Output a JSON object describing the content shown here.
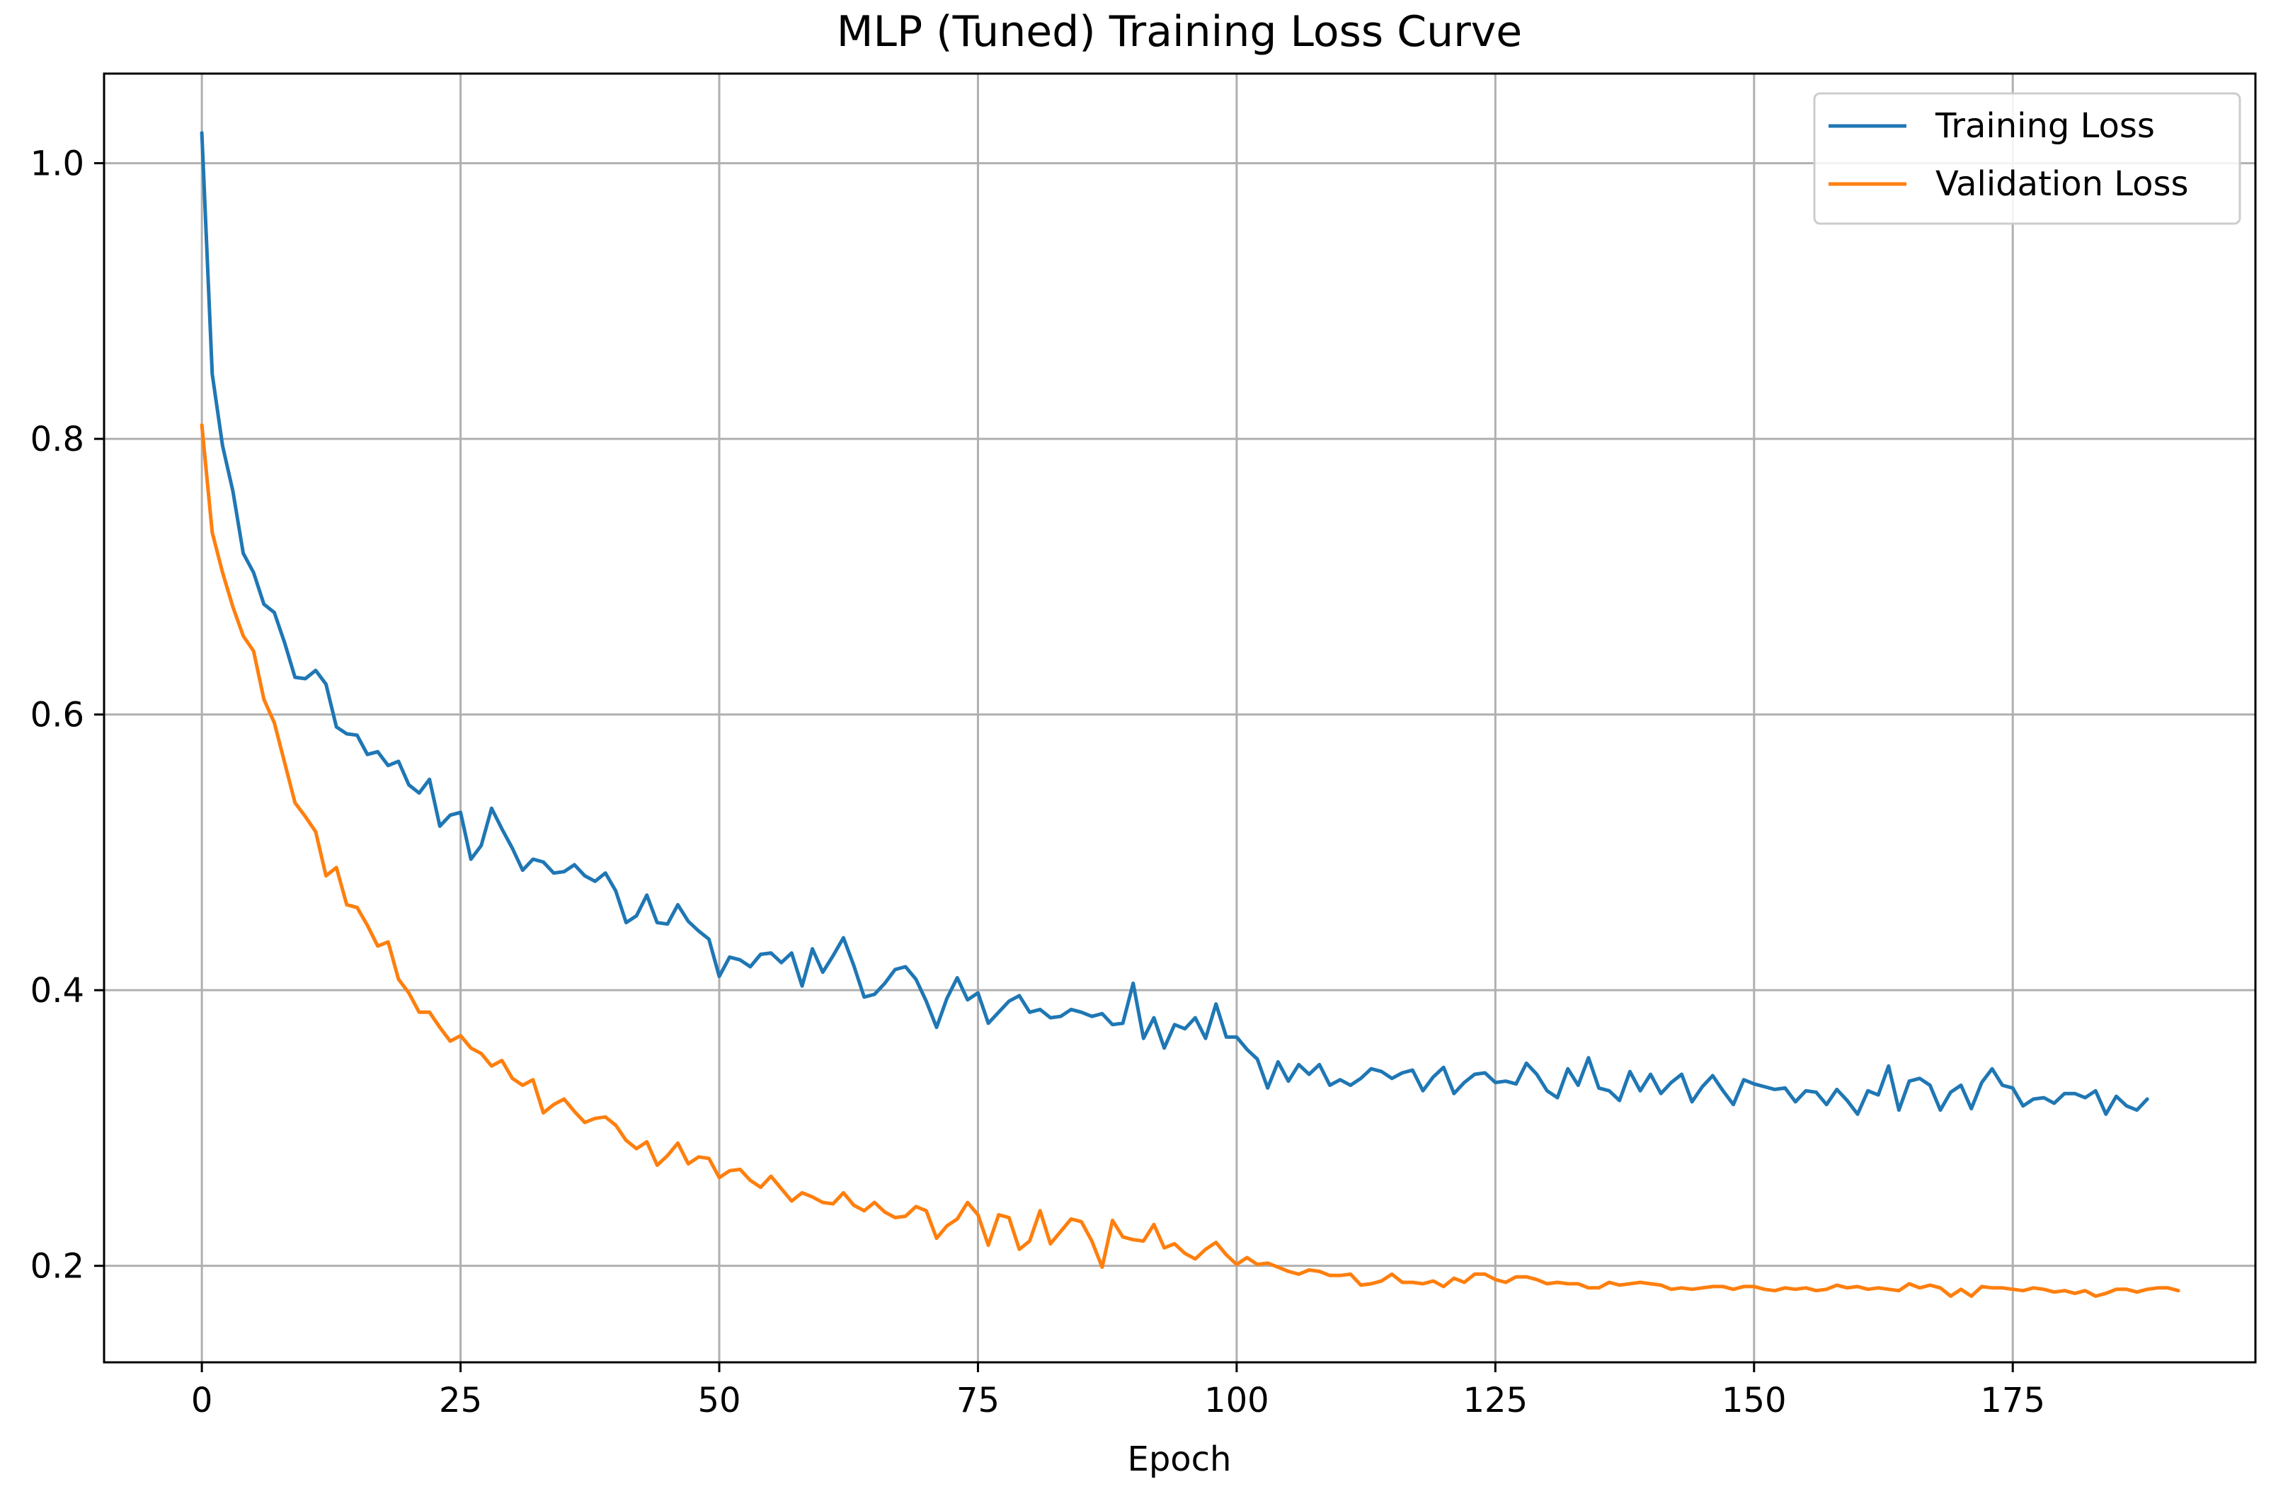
{
  "chart_data": {
    "type": "line",
    "title": "MLP (Tuned) Training Loss Curve",
    "xlabel": "Epoch",
    "ylabel": "",
    "xlim": [
      -9.45,
      198.45
    ],
    "ylim": [
      0.13,
      1.065
    ],
    "grid": true,
    "legend_position": "top-right",
    "x_ticks": [
      0,
      25,
      50,
      75,
      100,
      125,
      150,
      175
    ],
    "y_ticks": [
      0.2,
      0.4,
      0.6,
      0.8,
      1.0
    ],
    "x_tick_labels": [
      "0",
      "25",
      "50",
      "75",
      "100",
      "125",
      "150",
      "175"
    ],
    "y_tick_labels": [
      "0.2",
      "0.4",
      "0.6",
      "0.8",
      "1.0"
    ],
    "series": [
      {
        "name": "Training Loss",
        "color": "#1f77b4",
        "values": [
          1.022,
          0.847,
          0.795,
          0.762,
          0.717,
          0.703,
          0.68,
          0.674,
          0.652,
          0.627,
          0.626,
          0.632,
          0.622,
          0.591,
          0.586,
          0.585,
          0.571,
          0.573,
          0.563,
          0.566,
          0.549,
          0.543,
          0.553,
          0.519,
          0.527,
          0.529,
          0.495,
          0.505,
          0.532,
          0.517,
          0.503,
          0.487,
          0.495,
          0.493,
          0.485,
          0.486,
          0.491,
          0.483,
          0.479,
          0.485,
          0.472,
          0.449,
          0.454,
          0.469,
          0.449,
          0.448,
          0.462,
          0.45,
          0.443,
          0.437,
          0.41,
          0.424,
          0.422,
          0.417,
          0.426,
          0.427,
          0.42,
          0.427,
          0.403,
          0.43,
          0.413,
          0.425,
          0.438,
          0.418,
          0.395,
          0.397,
          0.405,
          0.415,
          0.417,
          0.408,
          0.392,
          0.373,
          0.394,
          0.409,
          0.393,
          0.398,
          0.376,
          0.384,
          0.392,
          0.396,
          0.384,
          0.386,
          0.38,
          0.381,
          0.386,
          0.384,
          0.381,
          0.383,
          0.375,
          0.376,
          0.405,
          0.365,
          0.38,
          0.358,
          0.375,
          0.372,
          0.38,
          0.365,
          0.39,
          0.366,
          0.366,
          0.357,
          0.35,
          0.329,
          0.348,
          0.334,
          0.346,
          0.339,
          0.346,
          0.331,
          0.335,
          0.331,
          0.336,
          0.343,
          0.341,
          0.336,
          0.34,
          0.342,
          0.327,
          0.337,
          0.344,
          0.325,
          0.333,
          0.339,
          0.34,
          0.333,
          0.334,
          0.332,
          0.347,
          0.339,
          0.327,
          0.322,
          0.343,
          0.331,
          0.351,
          0.329,
          0.327,
          0.32,
          0.341,
          0.327,
          0.339,
          0.325,
          0.333,
          0.339,
          0.319,
          0.33,
          0.338,
          0.327,
          0.317,
          0.335,
          0.332,
          0.33,
          0.328,
          0.329,
          0.319,
          0.327,
          0.326,
          0.317,
          0.328,
          0.32,
          0.31,
          0.327,
          0.324,
          0.345,
          0.313,
          0.334,
          0.336,
          0.331,
          0.313,
          0.326,
          0.331,
          0.314,
          0.333,
          0.343,
          0.331,
          0.329,
          0.316,
          0.321,
          0.322,
          0.318,
          0.325,
          0.325,
          0.322,
          0.327,
          0.31,
          0.323,
          0.316,
          0.313,
          0.321
        ]
      },
      {
        "name": "Validation Loss",
        "color": "#ff7f0e",
        "values": [
          0.81,
          0.732,
          0.703,
          0.678,
          0.657,
          0.646,
          0.611,
          0.594,
          0.565,
          0.536,
          0.526,
          0.515,
          0.483,
          0.489,
          0.462,
          0.46,
          0.447,
          0.432,
          0.435,
          0.408,
          0.398,
          0.384,
          0.384,
          0.373,
          0.363,
          0.367,
          0.358,
          0.354,
          0.345,
          0.349,
          0.336,
          0.331,
          0.335,
          0.311,
          0.317,
          0.321,
          0.312,
          0.304,
          0.307,
          0.308,
          0.302,
          0.291,
          0.285,
          0.29,
          0.273,
          0.28,
          0.289,
          0.274,
          0.279,
          0.278,
          0.264,
          0.269,
          0.27,
          0.262,
          0.257,
          0.265,
          0.256,
          0.247,
          0.253,
          0.25,
          0.246,
          0.245,
          0.253,
          0.244,
          0.24,
          0.246,
          0.239,
          0.235,
          0.236,
          0.243,
          0.24,
          0.22,
          0.229,
          0.234,
          0.246,
          0.237,
          0.215,
          0.237,
          0.235,
          0.212,
          0.218,
          0.24,
          0.216,
          0.225,
          0.234,
          0.232,
          0.218,
          0.199,
          0.233,
          0.221,
          0.219,
          0.218,
          0.23,
          0.213,
          0.216,
          0.209,
          0.205,
          0.212,
          0.217,
          0.208,
          0.201,
          0.206,
          0.201,
          0.202,
          0.199,
          0.196,
          0.194,
          0.197,
          0.196,
          0.193,
          0.193,
          0.194,
          0.186,
          0.187,
          0.189,
          0.194,
          0.188,
          0.188,
          0.187,
          0.189,
          0.185,
          0.191,
          0.188,
          0.194,
          0.194,
          0.19,
          0.188,
          0.192,
          0.192,
          0.19,
          0.187,
          0.188,
          0.187,
          0.187,
          0.184,
          0.184,
          0.188,
          0.186,
          0.187,
          0.188,
          0.187,
          0.186,
          0.183,
          0.184,
          0.183,
          0.184,
          0.185,
          0.185,
          0.183,
          0.185,
          0.185,
          0.183,
          0.182,
          0.184,
          0.183,
          0.184,
          0.182,
          0.183,
          0.186,
          0.184,
          0.185,
          0.183,
          0.184,
          0.183,
          0.182,
          0.187,
          0.184,
          0.186,
          0.184,
          0.178,
          0.183,
          0.178,
          0.185,
          0.184,
          0.184,
          0.183,
          0.182,
          0.184,
          0.183,
          0.181,
          0.182,
          0.18,
          0.182,
          0.178,
          0.18,
          0.183,
          0.183,
          0.181,
          0.183,
          0.184,
          0.184,
          0.182
        ]
      }
    ]
  }
}
